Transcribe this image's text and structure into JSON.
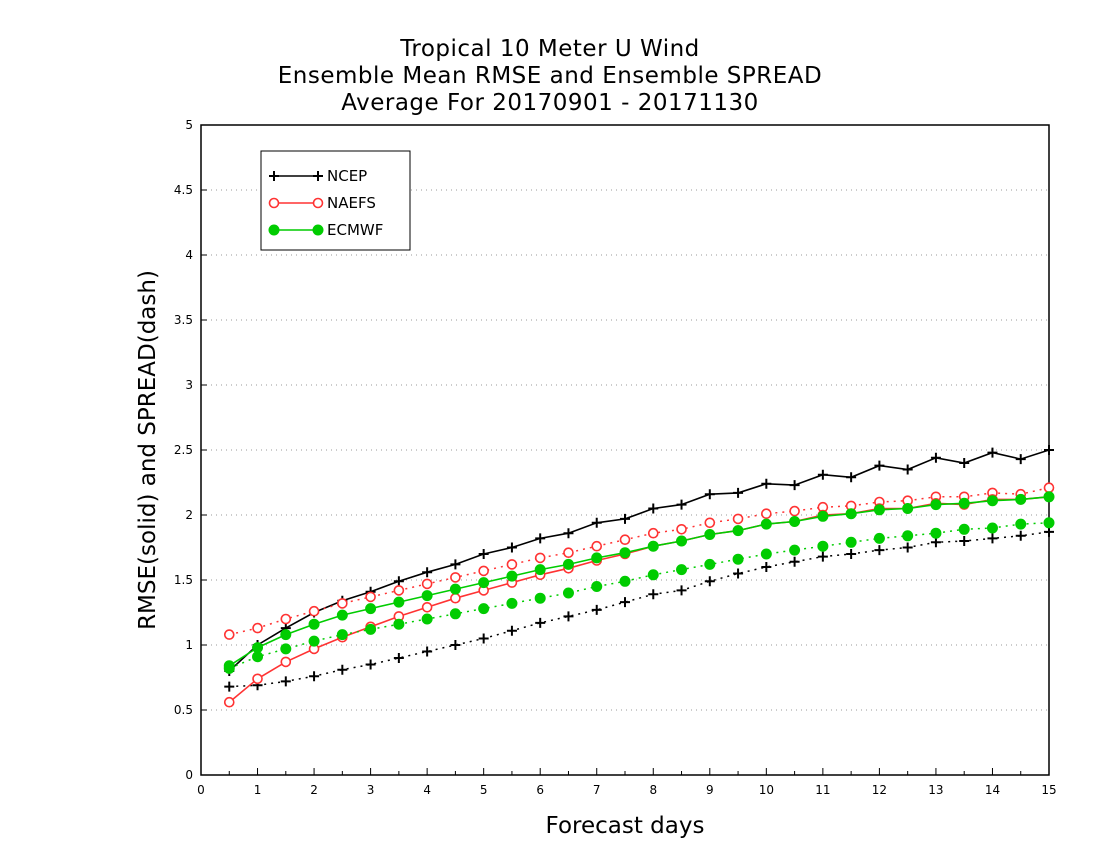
{
  "chart_data": {
    "type": "line",
    "title_lines": [
      "Tropical 10 Meter U Wind",
      "Ensemble Mean RMSE and Ensemble SPREAD",
      "Average For 20170901 - 20171130"
    ],
    "xlabel": "Forecast days",
    "ylabel": "RMSE(solid) and SPREAD(dash)",
    "xlim": [
      0,
      15
    ],
    "ylim": [
      0,
      5
    ],
    "xticks": [
      "0",
      "1",
      "2",
      "3",
      "4",
      "5",
      "6",
      "7",
      "8",
      "9",
      "10",
      "11",
      "12",
      "13",
      "14",
      "15"
    ],
    "yticks": [
      "0",
      "0.5",
      "1",
      "1.5",
      "2",
      "2.5",
      "3",
      "3.5",
      "4",
      "4.5",
      "5"
    ],
    "grid": true,
    "legend_position": "top-left",
    "x": [
      0.5,
      1,
      1.5,
      2,
      2.5,
      3,
      3.5,
      4,
      4.5,
      5,
      5.5,
      6,
      6.5,
      7,
      7.5,
      8,
      8.5,
      9,
      9.5,
      10,
      10.5,
      11,
      11.5,
      12,
      12.5,
      13,
      13.5,
      14,
      14.5,
      15
    ],
    "series": [
      {
        "name": "NCEP",
        "color": "#000000",
        "marker": "plus",
        "rmse": [
          0.8,
          1.0,
          1.13,
          1.25,
          1.34,
          1.41,
          1.49,
          1.56,
          1.62,
          1.7,
          1.75,
          1.82,
          1.86,
          1.94,
          1.97,
          2.05,
          2.08,
          2.16,
          2.17,
          2.24,
          2.23,
          2.31,
          2.29,
          2.38,
          2.35,
          2.44,
          2.4,
          2.48,
          2.43,
          2.5
        ],
        "spread": [
          0.68,
          0.69,
          0.72,
          0.76,
          0.81,
          0.85,
          0.9,
          0.95,
          1.0,
          1.05,
          1.11,
          1.17,
          1.22,
          1.27,
          1.33,
          1.39,
          1.42,
          1.49,
          1.55,
          1.6,
          1.64,
          1.68,
          1.7,
          1.73,
          1.75,
          1.79,
          1.8,
          1.82,
          1.84,
          1.87
        ]
      },
      {
        "name": "NAEFS",
        "color": "#ff3333",
        "marker": "open-circle",
        "rmse": [
          0.56,
          0.74,
          0.87,
          0.97,
          1.06,
          1.14,
          1.22,
          1.29,
          1.36,
          1.42,
          1.48,
          1.54,
          1.59,
          1.65,
          1.7,
          1.76,
          1.8,
          1.85,
          1.88,
          1.93,
          1.95,
          2.0,
          2.01,
          2.05,
          2.05,
          2.09,
          2.08,
          2.12,
          2.12,
          2.14
        ],
        "spread": [
          1.08,
          1.13,
          1.2,
          1.26,
          1.32,
          1.37,
          1.42,
          1.47,
          1.52,
          1.57,
          1.62,
          1.67,
          1.71,
          1.76,
          1.81,
          1.86,
          1.89,
          1.94,
          1.97,
          2.01,
          2.03,
          2.06,
          2.07,
          2.1,
          2.11,
          2.14,
          2.14,
          2.17,
          2.16,
          2.21
        ]
      },
      {
        "name": "ECMWF",
        "color": "#00cc00",
        "marker": "filled-circle",
        "rmse": [
          0.84,
          0.98,
          1.08,
          1.16,
          1.23,
          1.28,
          1.33,
          1.38,
          1.43,
          1.48,
          1.53,
          1.58,
          1.62,
          1.67,
          1.71,
          1.76,
          1.8,
          1.85,
          1.88,
          1.93,
          1.95,
          1.99,
          2.01,
          2.04,
          2.05,
          2.08,
          2.09,
          2.11,
          2.12,
          2.14
        ],
        "spread": [
          0.82,
          0.91,
          0.97,
          1.03,
          1.08,
          1.12,
          1.16,
          1.2,
          1.24,
          1.28,
          1.32,
          1.36,
          1.4,
          1.45,
          1.49,
          1.54,
          1.58,
          1.62,
          1.66,
          1.7,
          1.73,
          1.76,
          1.79,
          1.82,
          1.84,
          1.86,
          1.89,
          1.9,
          1.93,
          1.94
        ]
      }
    ]
  }
}
